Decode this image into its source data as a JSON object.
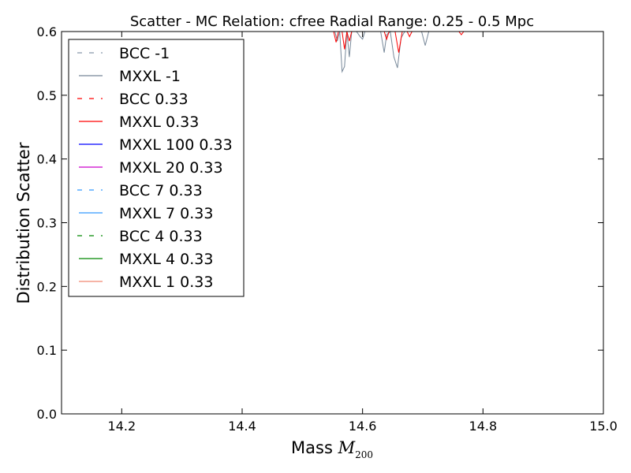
{
  "chart_data": {
    "type": "line",
    "title": "Scatter - MC Relation: cfree Radial Range: 0.25 - 0.5 Mpc",
    "xlabel_main": "Mass ",
    "xlabel_math": "M",
    "xlabel_sub": "200",
    "ylabel": "Distribution Scatter",
    "xlim": [
      14.1,
      15.0
    ],
    "ylim": [
      0.0,
      0.6
    ],
    "x_ticks": [
      "14.2",
      "14.4",
      "14.6",
      "14.8",
      "15.0"
    ],
    "x_tick_values": [
      14.2,
      14.4,
      14.6,
      14.8,
      15.0
    ],
    "y_ticks": [
      "0.0",
      "0.1",
      "0.2",
      "0.3",
      "0.4",
      "0.5",
      "0.6"
    ],
    "y_tick_values": [
      0.0,
      0.1,
      0.2,
      0.3,
      0.4,
      0.5,
      0.6
    ],
    "grid": false,
    "legend_position": "top-left",
    "series": [
      {
        "name": "BCC -1",
        "color": "#8899aa",
        "dashed": true,
        "x": [],
        "y": []
      },
      {
        "name": "MXXL -1",
        "color": "#778899",
        "dashed": false,
        "x": [
          14.554,
          14.558,
          14.562,
          14.566,
          14.57,
          14.574,
          14.578,
          14.582,
          14.586,
          14.59,
          14.596,
          14.6,
          14.604,
          14.63,
          14.636,
          14.64,
          14.646,
          14.652,
          14.658,
          14.664,
          14.67,
          14.698,
          14.704,
          14.71
        ],
        "y": [
          0.6,
          0.585,
          0.6,
          0.537,
          0.545,
          0.6,
          0.56,
          0.6,
          0.6,
          0.6,
          0.592,
          0.588,
          0.6,
          0.6,
          0.567,
          0.595,
          0.6,
          0.56,
          0.543,
          0.59,
          0.6,
          0.6,
          0.578,
          0.6
        ]
      },
      {
        "name": "BCC 0.33",
        "color": "#ff0000",
        "dashed": true,
        "x": [],
        "y": []
      },
      {
        "name": "MXXL 0.33",
        "color": "#ff0000",
        "dashed": false,
        "x": [
          14.552,
          14.556,
          14.56,
          14.566,
          14.57,
          14.574,
          14.578,
          14.582,
          14.636,
          14.64,
          14.644,
          14.654,
          14.66,
          14.666,
          14.674,
          14.678,
          14.682,
          14.76,
          14.764,
          14.768
        ],
        "y": [
          0.6,
          0.583,
          0.6,
          0.6,
          0.572,
          0.6,
          0.585,
          0.6,
          0.6,
          0.588,
          0.6,
          0.6,
          0.567,
          0.6,
          0.6,
          0.592,
          0.6,
          0.6,
          0.595,
          0.6
        ]
      },
      {
        "name": "MXXL 100 0.33",
        "color": "#0000ff",
        "dashed": false,
        "x": [],
        "y": []
      },
      {
        "name": "MXXL 20 0.33",
        "color": "#cc00cc",
        "dashed": false,
        "x": [],
        "y": []
      },
      {
        "name": "BCC 7 0.33",
        "color": "#3399ff",
        "dashed": true,
        "x": [],
        "y": []
      },
      {
        "name": "MXXL 7 0.33",
        "color": "#3399ff",
        "dashed": false,
        "x": [],
        "y": []
      },
      {
        "name": "BCC 4 0.33",
        "color": "#008800",
        "dashed": true,
        "x": [],
        "y": []
      },
      {
        "name": "MXXL 4 0.33",
        "color": "#008800",
        "dashed": false,
        "x": [],
        "y": []
      },
      {
        "name": "MXXL 1 0.33",
        "color": "#f08870",
        "dashed": false,
        "x": [],
        "y": []
      }
    ]
  }
}
